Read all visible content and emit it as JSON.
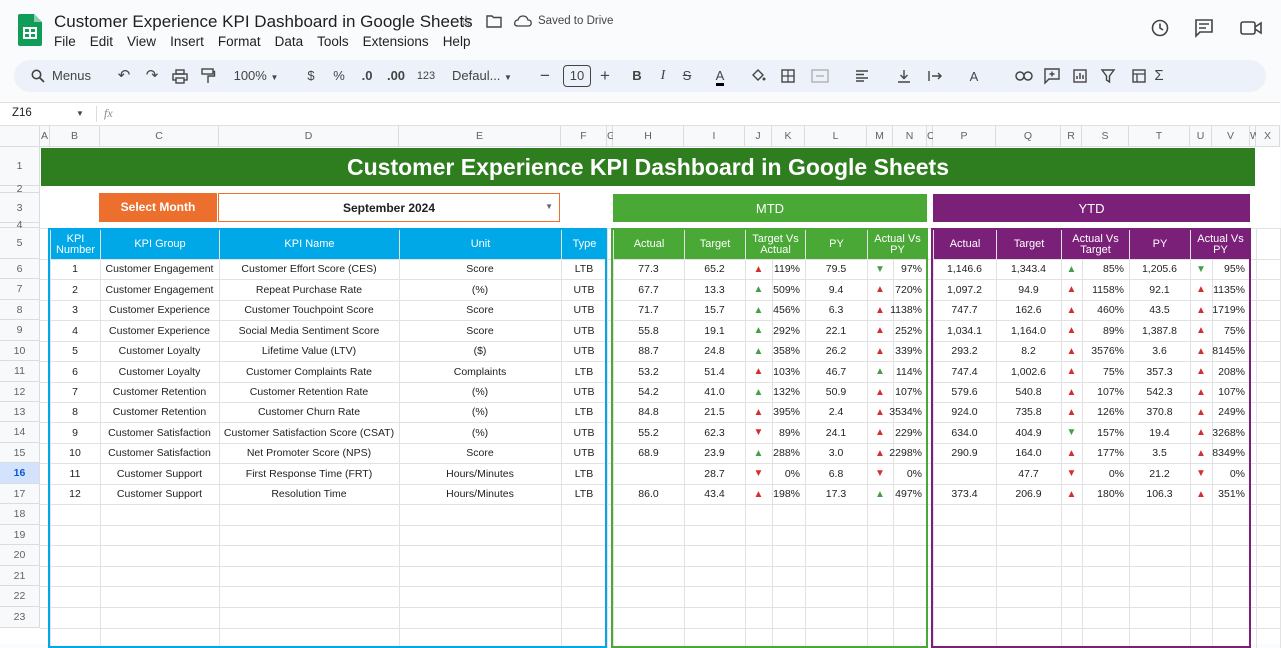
{
  "app": {
    "title": "Customer Experience KPI Dashboard in Google Sheets",
    "saved": "Saved to Drive",
    "menus": [
      "File",
      "Edit",
      "View",
      "Insert",
      "Format",
      "Data",
      "Tools",
      "Extensions",
      "Help"
    ]
  },
  "toolbar": {
    "menus_label": "Menus",
    "zoom": "100%",
    "currency": "$",
    "percent": "%",
    "dec_minus": ".0",
    "dec_plus": ".00",
    "number_fmt": "123",
    "font": "Defaul...",
    "font_size": "10",
    "bold": "B",
    "italic": "I",
    "strike": "S",
    "text_color": "A"
  },
  "formula_bar": {
    "cell_ref": "Z16",
    "fx": "fx"
  },
  "columns": [
    "A",
    "B",
    "C",
    "D",
    "E",
    "F",
    "G",
    "H",
    "I",
    "J",
    "K",
    "L",
    "M",
    "N",
    "O",
    "P",
    "Q",
    "R",
    "S",
    "T",
    "U",
    "V",
    "W",
    "X"
  ],
  "rows": [
    "1",
    "2",
    "3",
    "4",
    "5",
    "6",
    "7",
    "8",
    "9",
    "10",
    "11",
    "12",
    "13",
    "14",
    "15",
    "16",
    "17",
    "18",
    "19",
    "20",
    "21",
    "22",
    "23"
  ],
  "dashboard": {
    "title": "Customer Experience KPI Dashboard in Google Sheets",
    "select_month_label": "Select Month",
    "month": "September 2024",
    "mtd_label": "MTD",
    "ytd_label": "YTD",
    "headers": {
      "kpi_number": "KPI Number",
      "kpi_group": "KPI Group",
      "kpi_name": "KPI Name",
      "unit": "Unit",
      "type": "Type",
      "actual": "Actual",
      "target": "Target",
      "target_vs_actual": "Target Vs Actual",
      "py": "PY",
      "actual_vs_py": "Actual Vs PY",
      "actual_vs_target": "Actual Vs Target"
    }
  },
  "kpis": [
    {
      "num": "1",
      "group": "Customer Engagement",
      "name": "Customer Effort Score (CES)",
      "unit": "Score",
      "type": "LTB",
      "mtd_actual": "77.3",
      "mtd_target": "65.2",
      "mtd_tva_dir": "up",
      "mtd_tva": "119%",
      "mtd_py": "79.5",
      "mtd_apy_dir": "down-good",
      "mtd_apy": "97%",
      "ytd_actual": "1,146.6",
      "ytd_target": "1,343.4",
      "ytd_avt_dir": "up-good",
      "ytd_avt": "85%",
      "ytd_py": "1,205.6",
      "ytd_apy_dir": "down-good",
      "ytd_apy": "95%"
    },
    {
      "num": "2",
      "group": "Customer Engagement",
      "name": "Repeat Purchase Rate",
      "unit": "(%)",
      "type": "UTB",
      "mtd_actual": "67.7",
      "mtd_target": "13.3",
      "mtd_tva_dir": "up-good",
      "mtd_tva": "509%",
      "mtd_py": "9.4",
      "mtd_apy_dir": "up",
      "mtd_apy": "720%",
      "ytd_actual": "1,097.2",
      "ytd_target": "94.9",
      "ytd_avt_dir": "up",
      "ytd_avt": "1158%",
      "ytd_py": "92.1",
      "ytd_apy_dir": "up",
      "ytd_apy": "1135%"
    },
    {
      "num": "3",
      "group": "Customer Experience",
      "name": "Customer Touchpoint Score",
      "unit": "Score",
      "type": "UTB",
      "mtd_actual": "71.7",
      "mtd_target": "15.7",
      "mtd_tva_dir": "up-good",
      "mtd_tva": "456%",
      "mtd_py": "6.3",
      "mtd_apy_dir": "up",
      "mtd_apy": "1138%",
      "ytd_actual": "747.7",
      "ytd_target": "162.6",
      "ytd_avt_dir": "up",
      "ytd_avt": "460%",
      "ytd_py": "43.5",
      "ytd_apy_dir": "up",
      "ytd_apy": "1719%"
    },
    {
      "num": "4",
      "group": "Customer Experience",
      "name": "Social Media Sentiment Score",
      "unit": "Score",
      "type": "UTB",
      "mtd_actual": "55.8",
      "mtd_target": "19.1",
      "mtd_tva_dir": "up-good",
      "mtd_tva": "292%",
      "mtd_py": "22.1",
      "mtd_apy_dir": "up",
      "mtd_apy": "252%",
      "ytd_actual": "1,034.1",
      "ytd_target": "1,164.0",
      "ytd_avt_dir": "up",
      "ytd_avt": "89%",
      "ytd_py": "1,387.8",
      "ytd_apy_dir": "up",
      "ytd_apy": "75%"
    },
    {
      "num": "5",
      "group": "Customer Loyalty",
      "name": "Lifetime Value (LTV)",
      "unit": "($)",
      "type": "UTB",
      "mtd_actual": "88.7",
      "mtd_target": "24.8",
      "mtd_tva_dir": "up-good",
      "mtd_tva": "358%",
      "mtd_py": "26.2",
      "mtd_apy_dir": "up",
      "mtd_apy": "339%",
      "ytd_actual": "293.2",
      "ytd_target": "8.2",
      "ytd_avt_dir": "up",
      "ytd_avt": "3576%",
      "ytd_py": "3.6",
      "ytd_apy_dir": "up",
      "ytd_apy": "8145%"
    },
    {
      "num": "6",
      "group": "Customer Loyalty",
      "name": "Customer Complaints Rate",
      "unit": "Complaints",
      "type": "LTB",
      "mtd_actual": "53.2",
      "mtd_target": "51.4",
      "mtd_tva_dir": "up",
      "mtd_tva": "103%",
      "mtd_py": "46.7",
      "mtd_apy_dir": "up-good",
      "mtd_apy": "114%",
      "ytd_actual": "747.4",
      "ytd_target": "1,002.6",
      "ytd_avt_dir": "up",
      "ytd_avt": "75%",
      "ytd_py": "357.3",
      "ytd_apy_dir": "up",
      "ytd_apy": "208%"
    },
    {
      "num": "7",
      "group": "Customer Retention",
      "name": "Customer Retention Rate",
      "unit": "(%)",
      "type": "UTB",
      "mtd_actual": "54.2",
      "mtd_target": "41.0",
      "mtd_tva_dir": "up-good",
      "mtd_tva": "132%",
      "mtd_py": "50.9",
      "mtd_apy_dir": "up",
      "mtd_apy": "107%",
      "ytd_actual": "579.6",
      "ytd_target": "540.8",
      "ytd_avt_dir": "up",
      "ytd_avt": "107%",
      "ytd_py": "542.3",
      "ytd_apy_dir": "up",
      "ytd_apy": "107%"
    },
    {
      "num": "8",
      "group": "Customer Retention",
      "name": "Customer Churn Rate",
      "unit": "(%)",
      "type": "LTB",
      "mtd_actual": "84.8",
      "mtd_target": "21.5",
      "mtd_tva_dir": "up",
      "mtd_tva": "395%",
      "mtd_py": "2.4",
      "mtd_apy_dir": "up",
      "mtd_apy": "3534%",
      "ytd_actual": "924.0",
      "ytd_target": "735.8",
      "ytd_avt_dir": "up",
      "ytd_avt": "126%",
      "ytd_py": "370.8",
      "ytd_apy_dir": "up",
      "ytd_apy": "249%"
    },
    {
      "num": "9",
      "group": "Customer Satisfaction",
      "name": "Customer Satisfaction Score (CSAT)",
      "unit": "(%)",
      "type": "UTB",
      "mtd_actual": "55.2",
      "mtd_target": "62.3",
      "mtd_tva_dir": "down",
      "mtd_tva": "89%",
      "mtd_py": "24.1",
      "mtd_apy_dir": "up",
      "mtd_apy": "229%",
      "ytd_actual": "634.0",
      "ytd_target": "404.9",
      "ytd_avt_dir": "down-good",
      "ytd_avt": "157%",
      "ytd_py": "19.4",
      "ytd_apy_dir": "up",
      "ytd_apy": "3268%"
    },
    {
      "num": "10",
      "group": "Customer Satisfaction",
      "name": "Net Promoter Score (NPS)",
      "unit": "Score",
      "type": "UTB",
      "mtd_actual": "68.9",
      "mtd_target": "23.9",
      "mtd_tva_dir": "up-good",
      "mtd_tva": "288%",
      "mtd_py": "3.0",
      "mtd_apy_dir": "up",
      "mtd_apy": "2298%",
      "ytd_actual": "290.9",
      "ytd_target": "164.0",
      "ytd_avt_dir": "up",
      "ytd_avt": "177%",
      "ytd_py": "3.5",
      "ytd_apy_dir": "up",
      "ytd_apy": "8349%"
    },
    {
      "num": "11",
      "group": "Customer Support",
      "name": "First Response Time (FRT)",
      "unit": "Hours/Minutes",
      "type": "LTB",
      "mtd_actual": "",
      "mtd_target": "28.7",
      "mtd_tva_dir": "down",
      "mtd_tva": "0%",
      "mtd_py": "6.8",
      "mtd_apy_dir": "down",
      "mtd_apy": "0%",
      "ytd_actual": "",
      "ytd_target": "47.7",
      "ytd_avt_dir": "down",
      "ytd_avt": "0%",
      "ytd_py": "21.2",
      "ytd_apy_dir": "down",
      "ytd_apy": "0%"
    },
    {
      "num": "12",
      "group": "Customer Support",
      "name": "Resolution Time",
      "unit": "Hours/Minutes",
      "type": "LTB",
      "mtd_actual": "86.0",
      "mtd_target": "43.4",
      "mtd_tva_dir": "up",
      "mtd_tva": "198%",
      "mtd_py": "17.3",
      "mtd_apy_dir": "up-good",
      "mtd_apy": "497%",
      "ytd_actual": "373.4",
      "ytd_target": "206.9",
      "ytd_avt_dir": "up",
      "ytd_avt": "180%",
      "ytd_py": "106.3",
      "ytd_apy_dir": "up",
      "ytd_apy": "351%"
    }
  ],
  "colors": {
    "title_green": "#2e7d1e",
    "blue": "#00a8e8",
    "mtd_green": "#4aa836",
    "ytd_purple": "#7b2078",
    "orange": "#ec6f2d",
    "arrow_red": "#d32f2f",
    "arrow_green": "#43a047"
  }
}
